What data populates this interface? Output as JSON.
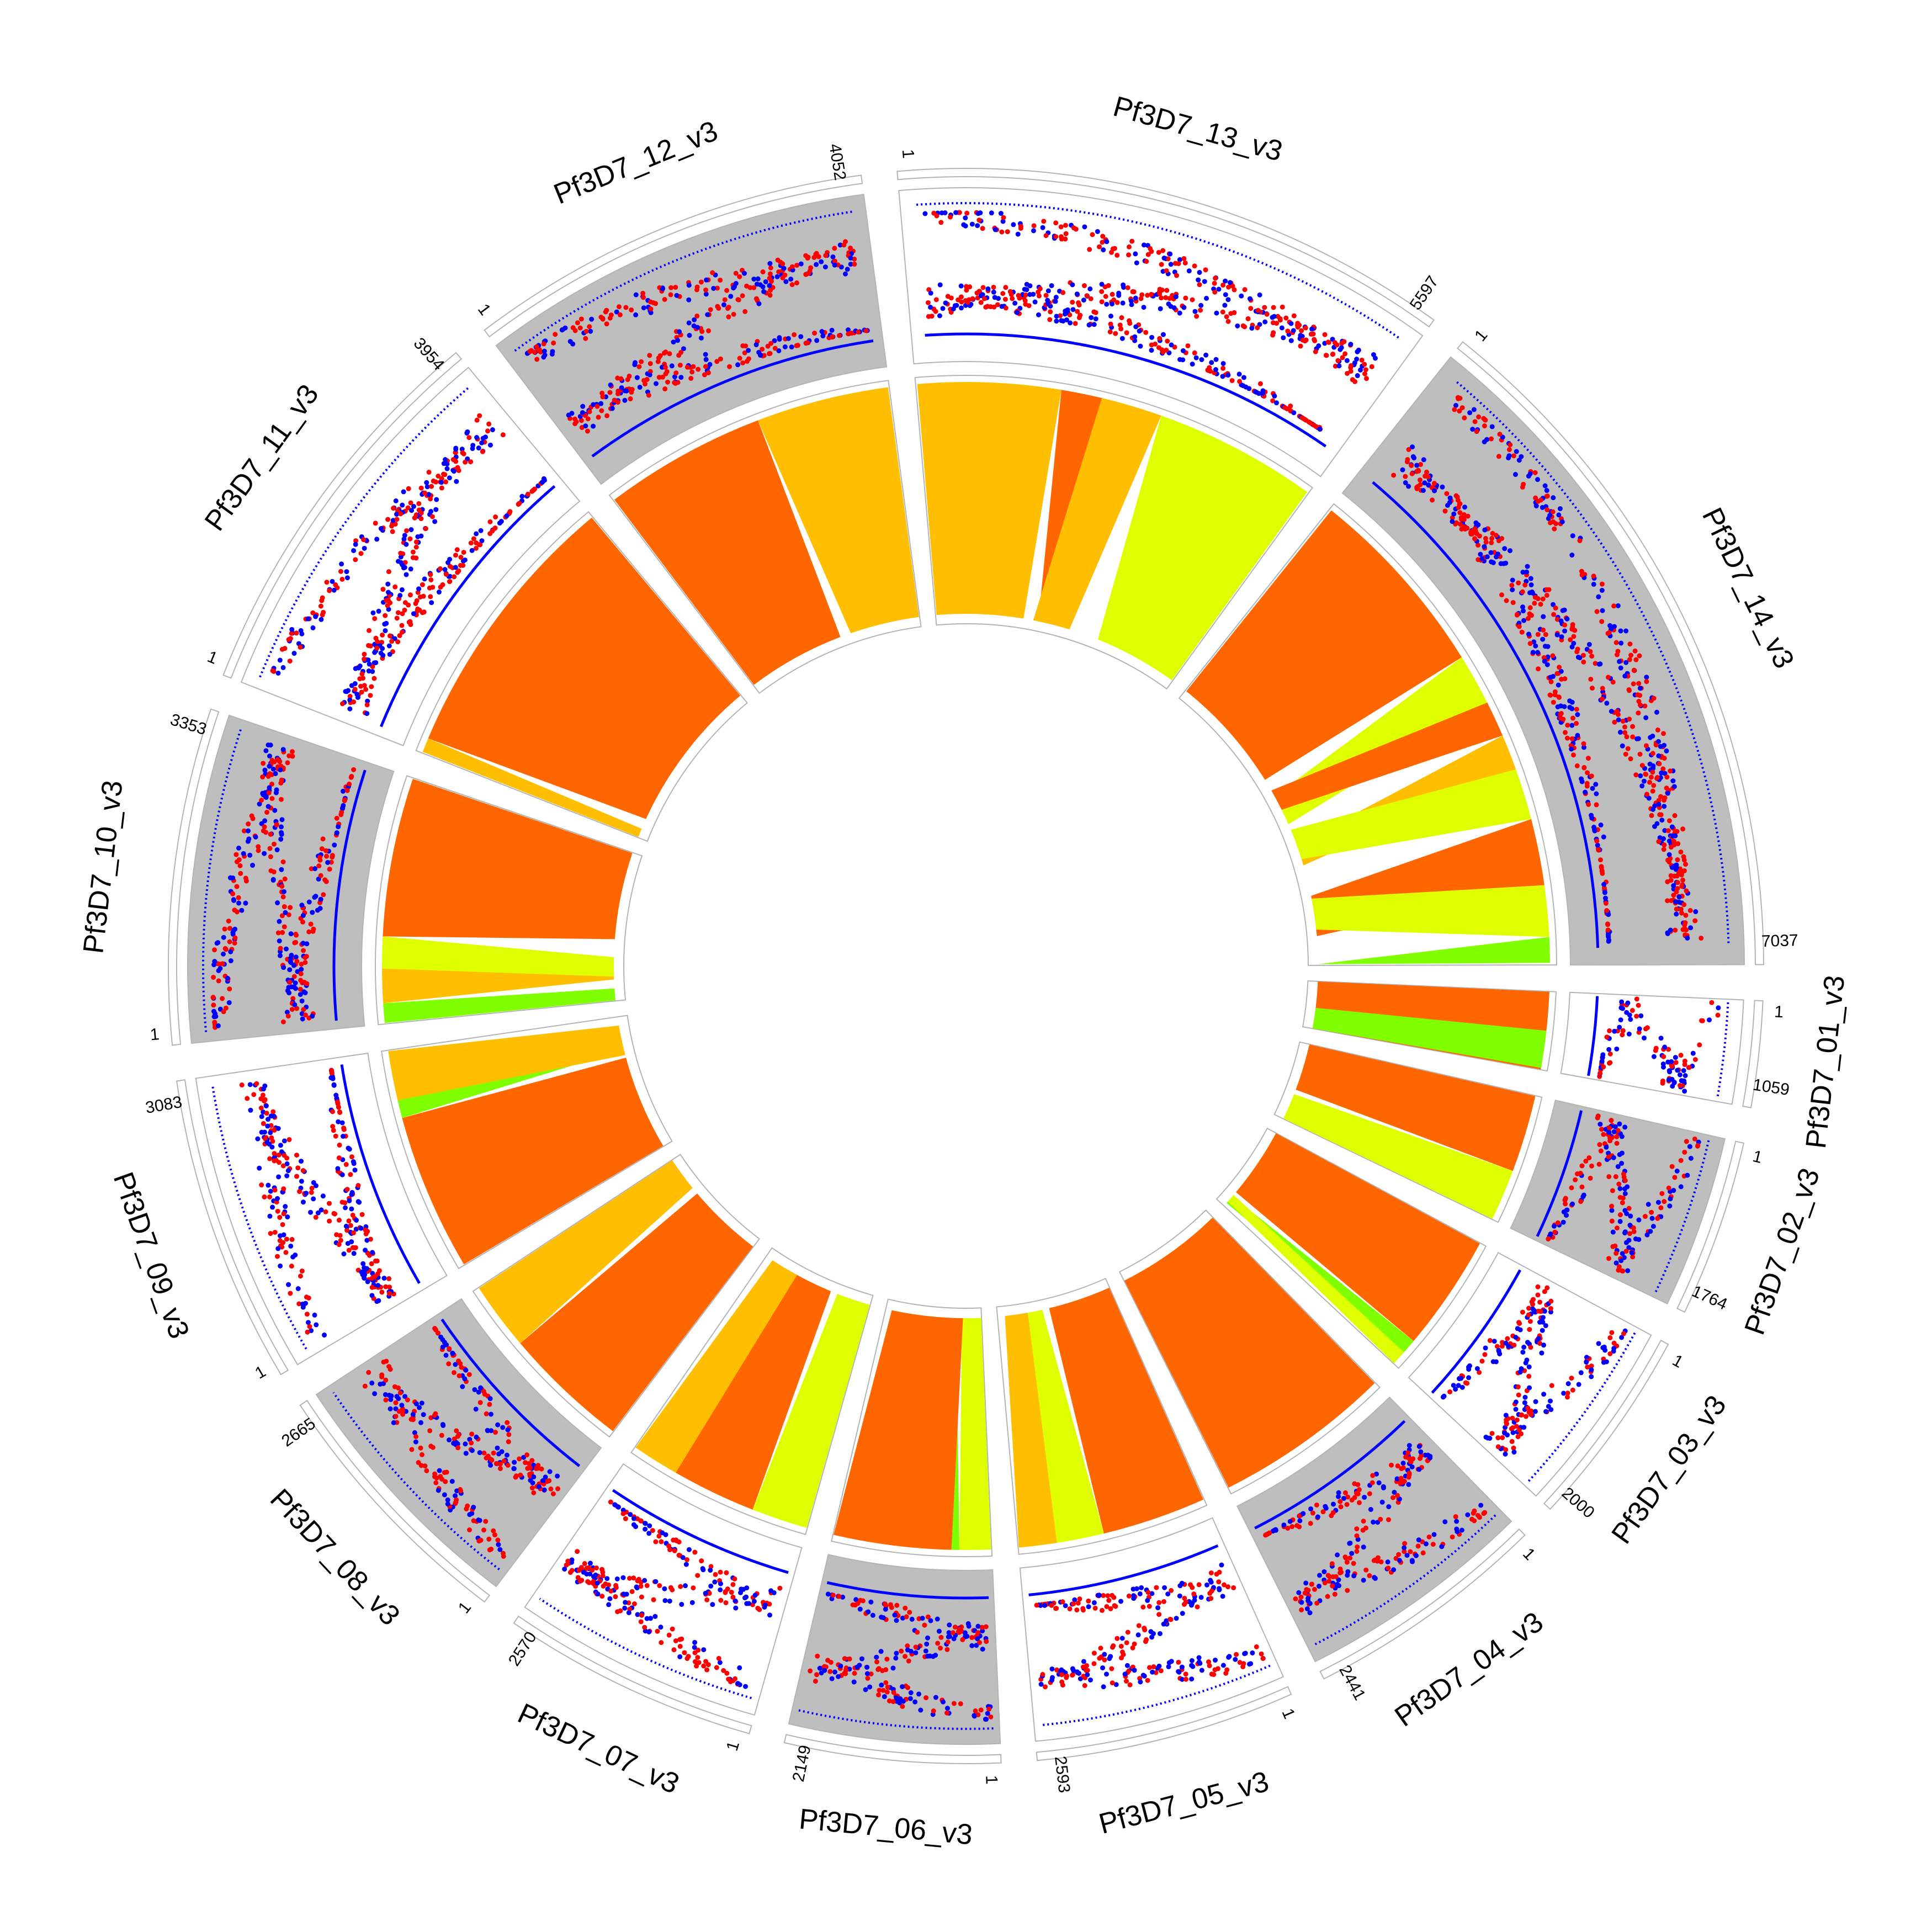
{
  "chart_data": {
    "type": "circos",
    "title": "",
    "colors": {
      "point_red": "#ff0000",
      "point_blue": "#0000ff",
      "line_blue": "#0000ff",
      "track_shade": "#bebebe",
      "track_plain": "#ffffff",
      "frame": "#b4b4b4",
      "dark_orange": "#ff6600",
      "amber": "#ffbf00",
      "yellow": "#dfff00",
      "green": "#7fff00"
    },
    "chromosomes": [
      {
        "name": "Pf3D7_01_v3",
        "start": 1,
        "end": 1059,
        "shaded": false,
        "inner_bands": [
          {
            "color": "dark_orange",
            "from": 0.0,
            "to": 1.0
          },
          {
            "color": "green",
            "from": 0.5,
            "to": 0.98
          }
        ]
      },
      {
        "name": "Pf3D7_02_v3",
        "start": 1,
        "end": 1764,
        "shaded": true,
        "inner_bands": [
          {
            "color": "dark_orange",
            "from": 0.0,
            "to": 0.6
          },
          {
            "color": "yellow",
            "from": 0.6,
            "to": 1.0
          }
        ]
      },
      {
        "name": "Pf3D7_03_v3",
        "start": 1,
        "end": 2000,
        "shaded": false,
        "inner_bands": [
          {
            "color": "dark_orange",
            "from": 0.0,
            "to": 0.8
          },
          {
            "color": "green",
            "from": 0.8,
            "to": 0.9
          },
          {
            "color": "yellow",
            "from": 0.9,
            "to": 1.0
          }
        ]
      },
      {
        "name": "Pf3D7_04_v3",
        "start": 1,
        "end": 2441,
        "shaded": true,
        "inner_bands": [
          {
            "color": "dark_orange",
            "from": 0.0,
            "to": 1.0
          }
        ]
      },
      {
        "name": "Pf3D7_05_v3",
        "start": 1,
        "end": 2593,
        "shaded": false,
        "inner_bands": [
          {
            "color": "dark_orange",
            "from": 0.0,
            "to": 0.55
          },
          {
            "color": "yellow",
            "from": 0.55,
            "to": 0.8
          },
          {
            "color": "amber",
            "from": 0.8,
            "to": 1.0
          }
        ]
      },
      {
        "name": "Pf3D7_06_v3",
        "start": 1,
        "end": 2149,
        "shaded": true,
        "inner_bands": [
          {
            "color": "yellow",
            "from": 0.0,
            "to": 0.2
          },
          {
            "color": "green",
            "from": 0.2,
            "to": 0.25
          },
          {
            "color": "dark_orange",
            "from": 0.25,
            "to": 1.0
          }
        ]
      },
      {
        "name": "Pf3D7_07_v3",
        "start": 1,
        "end": 2570,
        "shaded": false,
        "inner_bands": [
          {
            "color": "yellow",
            "from": 0.0,
            "to": 0.3
          },
          {
            "color": "dark_orange",
            "from": 0.3,
            "to": 0.75
          },
          {
            "color": "amber",
            "from": 0.75,
            "to": 1.0
          }
        ]
      },
      {
        "name": "Pf3D7_08_v3",
        "start": 1,
        "end": 2665,
        "shaded": true,
        "inner_bands": [
          {
            "color": "dark_orange",
            "from": 0.0,
            "to": 0.65
          },
          {
            "color": "amber",
            "from": 0.65,
            "to": 1.0
          }
        ]
      },
      {
        "name": "Pf3D7_09_v3",
        "start": 1,
        "end": 3083,
        "shaded": false,
        "inner_bands": [
          {
            "color": "dark_orange",
            "from": 0.0,
            "to": 0.7
          },
          {
            "color": "green",
            "from": 0.7,
            "to": 0.78
          },
          {
            "color": "amber",
            "from": 0.78,
            "to": 1.0
          }
        ]
      },
      {
        "name": "Pf3D7_10_v3",
        "start": 1,
        "end": 3353,
        "shaded": true,
        "inner_bands": [
          {
            "color": "green",
            "from": 0.0,
            "to": 0.08
          },
          {
            "color": "amber",
            "from": 0.08,
            "to": 0.22
          },
          {
            "color": "yellow",
            "from": 0.22,
            "to": 0.35
          },
          {
            "color": "dark_orange",
            "from": 0.35,
            "to": 1.0
          }
        ]
      },
      {
        "name": "Pf3D7_11_v3",
        "start": 1,
        "end": 3954,
        "shaded": false,
        "inner_bands": [
          {
            "color": "amber",
            "from": 0.0,
            "to": 0.05
          },
          {
            "color": "dark_orange",
            "from": 0.05,
            "to": 1.0
          }
        ]
      },
      {
        "name": "Pf3D7_12_v3",
        "start": 1,
        "end": 4052,
        "shaded": true,
        "inner_bands": [
          {
            "color": "dark_orange",
            "from": 0.0,
            "to": 0.55
          },
          {
            "color": "amber",
            "from": 0.55,
            "to": 1.0
          }
        ]
      },
      {
        "name": "Pf3D7_13_v3",
        "start": 1,
        "end": 5597,
        "shaded": false,
        "inner_bands": [
          {
            "color": "amber",
            "from": 0.0,
            "to": 0.35
          },
          {
            "color": "dark_orange",
            "from": 0.35,
            "to": 0.45
          },
          {
            "color": "amber",
            "from": 0.45,
            "to": 0.6
          },
          {
            "color": "yellow",
            "from": 0.6,
            "to": 1.0
          }
        ]
      },
      {
        "name": "Pf3D7_14_v3",
        "start": 1,
        "end": 7037,
        "shaded": true,
        "inner_bands": [
          {
            "color": "dark_orange",
            "from": 0.0,
            "to": 0.38
          },
          {
            "color": "yellow",
            "from": 0.38,
            "to": 0.48
          },
          {
            "color": "dark_orange",
            "from": 0.48,
            "to": 0.55
          },
          {
            "color": "amber",
            "from": 0.55,
            "to": 0.62
          },
          {
            "color": "yellow",
            "from": 0.62,
            "to": 0.72
          },
          {
            "color": "dark_orange",
            "from": 0.72,
            "to": 0.85
          },
          {
            "color": "yellow",
            "from": 0.85,
            "to": 0.95
          },
          {
            "color": "green",
            "from": 0.95,
            "to": 1.0
          }
        ]
      }
    ]
  }
}
